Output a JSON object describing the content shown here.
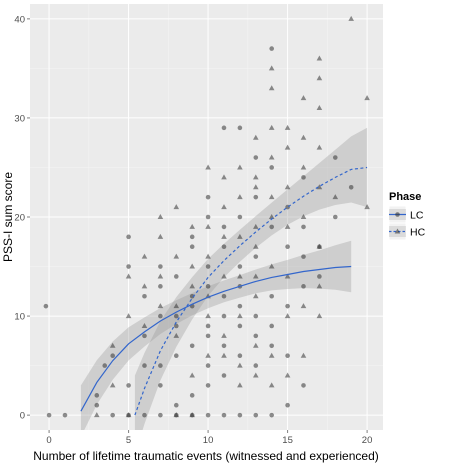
{
  "chart_data": {
    "type": "scatter",
    "title": "",
    "xlabel": "Number of lifetime traumatic events (witnessed and experienced)",
    "ylabel": "PSS-I sum score",
    "xlim": [
      -1.2,
      21.0
    ],
    "ylim": [
      -1.5,
      41.5
    ],
    "x_ticks": [
      0,
      5,
      10,
      15,
      20
    ],
    "y_ticks": [
      0,
      10,
      20,
      30,
      40
    ],
    "grid": true,
    "legend": {
      "title": "Phase",
      "placement": "right",
      "entries": [
        "LC",
        "HC"
      ]
    },
    "colors": {
      "panel_background": "#ebebeb",
      "grid_major": "#ffffff",
      "grid_minor": "#f5f5f5",
      "fit_line": "#3366cc",
      "ribbon": "#999999",
      "point": "#333333",
      "axis_text": "#4d4d4d"
    },
    "series": [
      {
        "name": "LC",
        "marker": "circle",
        "points": [
          [
            0,
            0
          ],
          [
            1,
            0
          ],
          [
            -0.2,
            11
          ],
          [
            3,
            2
          ],
          [
            3,
            1
          ],
          [
            3.5,
            5
          ],
          [
            4,
            6
          ],
          [
            4,
            0
          ],
          [
            5,
            3
          ],
          [
            5,
            15
          ],
          [
            5,
            18
          ],
          [
            5,
            0
          ],
          [
            6,
            5
          ],
          [
            6,
            8
          ],
          [
            6,
            12
          ],
          [
            6,
            0
          ],
          [
            7,
            5
          ],
          [
            7,
            10
          ],
          [
            7,
            13
          ],
          [
            7,
            15
          ],
          [
            7,
            0
          ],
          [
            7,
            3
          ],
          [
            8,
            6
          ],
          [
            8,
            9
          ],
          [
            8,
            10
          ],
          [
            8,
            14
          ],
          [
            8,
            1
          ],
          [
            8,
            0
          ],
          [
            9,
            7
          ],
          [
            9,
            11
          ],
          [
            9,
            12
          ],
          [
            9,
            17
          ],
          [
            9,
            18
          ],
          [
            9,
            0
          ],
          [
            9,
            2
          ],
          [
            10,
            3
          ],
          [
            10,
            5
          ],
          [
            10,
            8
          ],
          [
            10,
            9
          ],
          [
            10,
            13
          ],
          [
            10,
            15
          ],
          [
            10,
            20
          ],
          [
            10,
            22
          ],
          [
            10,
            0
          ],
          [
            11,
            4
          ],
          [
            11,
            7
          ],
          [
            11,
            10
          ],
          [
            11,
            12
          ],
          [
            11,
            17
          ],
          [
            11,
            19
          ],
          [
            11,
            29
          ],
          [
            11,
            0
          ],
          [
            12,
            6
          ],
          [
            12,
            9
          ],
          [
            12,
            11
          ],
          [
            12,
            13
          ],
          [
            12,
            15
          ],
          [
            12,
            20
          ],
          [
            12,
            29
          ],
          [
            12,
            0
          ],
          [
            13,
            5
          ],
          [
            13,
            8
          ],
          [
            13,
            10
          ],
          [
            13,
            16
          ],
          [
            13,
            22
          ],
          [
            13,
            26
          ],
          [
            13,
            0
          ],
          [
            14,
            7
          ],
          [
            14,
            9
          ],
          [
            14,
            12
          ],
          [
            14,
            19
          ],
          [
            14,
            25
          ],
          [
            14,
            37
          ],
          [
            14,
            0
          ],
          [
            15,
            6
          ],
          [
            15,
            11
          ],
          [
            15,
            17
          ],
          [
            15,
            21
          ],
          [
            15,
            1
          ],
          [
            16,
            13
          ],
          [
            16,
            16
          ],
          [
            16,
            19
          ],
          [
            16,
            24
          ],
          [
            16,
            3
          ],
          [
            17,
            14
          ],
          [
            17,
            17
          ],
          [
            18,
            26
          ],
          [
            18,
            20
          ],
          [
            19,
            23
          ]
        ],
        "fit": [
          [
            2,
            0.4
          ],
          [
            3,
            3.3
          ],
          [
            4,
            5.5
          ],
          [
            5,
            7.2
          ],
          [
            6,
            8.4
          ],
          [
            7,
            9.5
          ],
          [
            8,
            10.4
          ],
          [
            9,
            11.2
          ],
          [
            10,
            11.9
          ],
          [
            11,
            12.5
          ],
          [
            12,
            13.0
          ],
          [
            13,
            13.5
          ],
          [
            14,
            13.9
          ],
          [
            15,
            14.2
          ],
          [
            16,
            14.5
          ],
          [
            17,
            14.7
          ],
          [
            18,
            14.9
          ],
          [
            19,
            15.0
          ]
        ]
      },
      {
        "name": "HC",
        "marker": "triangle",
        "points": [
          [
            3,
            0
          ],
          [
            4,
            3
          ],
          [
            4,
            7
          ],
          [
            5,
            10
          ],
          [
            5,
            14
          ],
          [
            5,
            0
          ],
          [
            6,
            9
          ],
          [
            6,
            13
          ],
          [
            6,
            16
          ],
          [
            7,
            11
          ],
          [
            7,
            14
          ],
          [
            7,
            18
          ],
          [
            7,
            20
          ],
          [
            8,
            8
          ],
          [
            8,
            11
          ],
          [
            8,
            16
          ],
          [
            8,
            21
          ],
          [
            8,
            0
          ],
          [
            9,
            4
          ],
          [
            9,
            13
          ],
          [
            9,
            15
          ],
          [
            9,
            19
          ],
          [
            9,
            0
          ],
          [
            10,
            6
          ],
          [
            10,
            10
          ],
          [
            10,
            12
          ],
          [
            10,
            16
          ],
          [
            10,
            19
          ],
          [
            10,
            25
          ],
          [
            11,
            6
          ],
          [
            11,
            8
          ],
          [
            11,
            14
          ],
          [
            11,
            18
          ],
          [
            11,
            21
          ],
          [
            11,
            24
          ],
          [
            12,
            3
          ],
          [
            12,
            5
          ],
          [
            12,
            10
          ],
          [
            12,
            14
          ],
          [
            12,
            18
          ],
          [
            12,
            22
          ],
          [
            12,
            25
          ],
          [
            13,
            4
          ],
          [
            13,
            7
          ],
          [
            13,
            12
          ],
          [
            13,
            14
          ],
          [
            13,
            17
          ],
          [
            13,
            19
          ],
          [
            13,
            23
          ],
          [
            13,
            24
          ],
          [
            13,
            28
          ],
          [
            14,
            3
          ],
          [
            14,
            6
          ],
          [
            14,
            15
          ],
          [
            14,
            20
          ],
          [
            14,
            22
          ],
          [
            14,
            26
          ],
          [
            14,
            29
          ],
          [
            14,
            33
          ],
          [
            14,
            35
          ],
          [
            15,
            4
          ],
          [
            15,
            10
          ],
          [
            15,
            14
          ],
          [
            15,
            19
          ],
          [
            15,
            23
          ],
          [
            15,
            27
          ],
          [
            15,
            29
          ],
          [
            16,
            6
          ],
          [
            16,
            11
          ],
          [
            16,
            20
          ],
          [
            16,
            25
          ],
          [
            16,
            28
          ],
          [
            16,
            32
          ],
          [
            17,
            10
          ],
          [
            17,
            13
          ],
          [
            17,
            17
          ],
          [
            17,
            23
          ],
          [
            17,
            27
          ],
          [
            17,
            31
          ],
          [
            17,
            34
          ],
          [
            17,
            36
          ],
          [
            19,
            40
          ],
          [
            20,
            32
          ],
          [
            20,
            21
          ],
          [
            18,
            22
          ]
        ],
        "fit": [
          [
            5.4,
            0
          ],
          [
            6,
            2.7
          ],
          [
            7,
            6.5
          ],
          [
            8,
            9.4
          ],
          [
            9,
            11.8
          ],
          [
            10,
            13.9
          ],
          [
            11,
            15.6
          ],
          [
            12,
            17.1
          ],
          [
            13,
            18.5
          ],
          [
            14,
            19.8
          ],
          [
            15,
            21.0
          ],
          [
            16,
            22.1
          ],
          [
            17,
            23.1
          ],
          [
            18,
            24.0
          ],
          [
            19,
            24.8
          ],
          [
            20,
            25.0
          ]
        ]
      }
    ]
  }
}
